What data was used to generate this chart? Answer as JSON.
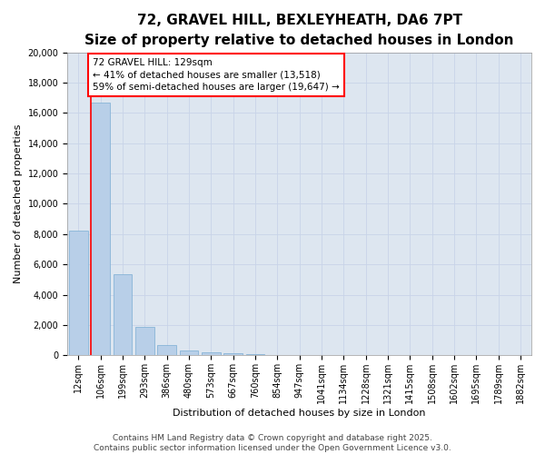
{
  "title1": "72, GRAVEL HILL, BEXLEYHEATH, DA6 7PT",
  "title2": "Size of property relative to detached houses in London",
  "xlabel": "Distribution of detached houses by size in London",
  "ylabel": "Number of detached properties",
  "categories": [
    "12sqm",
    "106sqm",
    "199sqm",
    "293sqm",
    "386sqm",
    "480sqm",
    "573sqm",
    "667sqm",
    "760sqm",
    "854sqm",
    "947sqm",
    "1041sqm",
    "1134sqm",
    "1228sqm",
    "1321sqm",
    "1415sqm",
    "1508sqm",
    "1602sqm",
    "1695sqm",
    "1789sqm",
    "1882sqm"
  ],
  "values": [
    8200,
    16700,
    5350,
    1850,
    650,
    330,
    200,
    120,
    100,
    0,
    0,
    0,
    0,
    0,
    0,
    0,
    0,
    0,
    0,
    0,
    0
  ],
  "bar_color": "#b8cfe8",
  "bar_edge_color": "#7aadd4",
  "vline_color": "red",
  "annotation_text": "72 GRAVEL HILL: 129sqm\n← 41% of detached houses are smaller (13,518)\n59% of semi-detached houses are larger (19,647) →",
  "annotation_box_color": "white",
  "annotation_box_edge_color": "red",
  "ylim": [
    0,
    20000
  ],
  "yticks": [
    0,
    2000,
    4000,
    6000,
    8000,
    10000,
    12000,
    14000,
    16000,
    18000,
    20000
  ],
  "grid_color": "#c8d4e8",
  "background_color": "#dde6f0",
  "footer_text": "Contains HM Land Registry data © Crown copyright and database right 2025.\nContains public sector information licensed under the Open Government Licence v3.0.",
  "title_fontsize": 11,
  "subtitle_fontsize": 9,
  "axis_label_fontsize": 8,
  "tick_fontsize": 7,
  "annotation_fontsize": 7.5,
  "footer_fontsize": 6.5
}
